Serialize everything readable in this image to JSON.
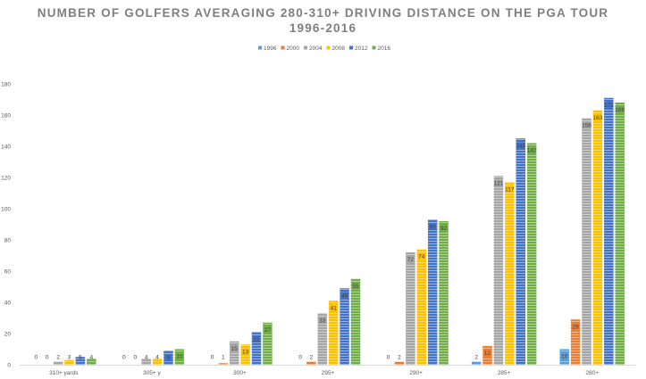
{
  "chart_data": {
    "type": "bar",
    "title_line1": "NUMBER OF GOLFERS AVERAGING 280-310+ DRIVING DISTANCE ON THE PGA TOUR",
    "title_line2": "1996-2016",
    "categories": [
      "310+ yards",
      "305+ y",
      "300+",
      "295+",
      "290+",
      "285+",
      "280+"
    ],
    "series": [
      {
        "name": "1996",
        "color": "#5b9bd5",
        "values": [
          0,
          0,
          0,
          0,
          0,
          2,
          10
        ]
      },
      {
        "name": "2000",
        "color": "#ed7d31",
        "values": [
          0,
          0,
          1,
          2,
          2,
          12,
          29
        ]
      },
      {
        "name": "2004",
        "color": "#a5a5a5",
        "values": [
          2,
          4,
          15,
          33,
          72,
          121,
          158
        ]
      },
      {
        "name": "2008",
        "color": "#ffc000",
        "values": [
          3,
          4,
          13,
          41,
          74,
          117,
          163
        ]
      },
      {
        "name": "2012",
        "color": "#4472c4",
        "values": [
          5,
          9,
          21,
          49,
          93,
          145,
          171
        ]
      },
      {
        "name": "2016",
        "color": "#70ad47",
        "values": [
          4,
          10,
          27,
          55,
          92,
          142,
          168
        ]
      }
    ],
    "ylim": [
      0,
      180
    ],
    "yticks": [
      0,
      20,
      40,
      60,
      80,
      100,
      120,
      140,
      160,
      180
    ],
    "legend_position": "top-center",
    "grid": false
  }
}
